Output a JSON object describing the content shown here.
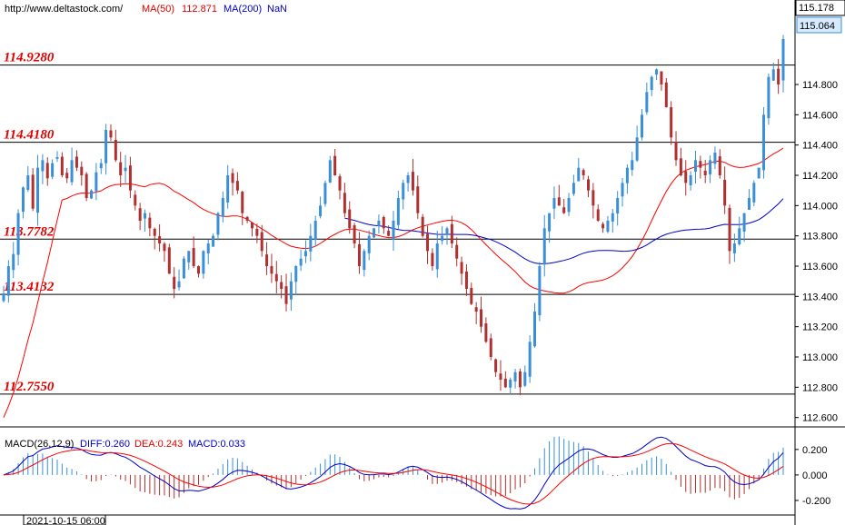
{
  "header": {
    "url": "http://www.deltastock.com/",
    "ma50_label": "MA(50)",
    "ma50_value": "112.871",
    "ma200_label": "MA(200)",
    "ma200_value": "NaN"
  },
  "price_axis": {
    "top_label": "115.178",
    "current_price": "115.064",
    "ticks": [
      "114.800",
      "114.600",
      "114.400",
      "114.200",
      "114.000",
      "113.800",
      "113.600",
      "113.400",
      "113.200",
      "113.000",
      "112.800",
      "112.600"
    ]
  },
  "macd": {
    "label": "MACD(26,12,9)",
    "diff": "DIFF:0.260",
    "dea": "DEA:0.243",
    "macd": "MACD:0.033",
    "ticks": [
      "0.200",
      "0.000",
      "-0.200"
    ]
  },
  "time_label": "2021-10-15 06:00",
  "colors": {
    "up": "#3a8fd6",
    "down": "#b03030",
    "ma50": "#ff0000",
    "ma200": "#0000cc",
    "levels": "#e00000"
  },
  "chart_data": {
    "type": "candlestick",
    "price_range": [
      112.55,
      115.25
    ],
    "levels": [
      {
        "label": "114.9280",
        "value": 114.928
      },
      {
        "label": "114.4180",
        "value": 114.418
      },
      {
        "label": "113.7782",
        "value": 113.7782
      },
      {
        "label": "113.4132",
        "value": 113.4132
      },
      {
        "label": "112.7550",
        "value": 112.755
      }
    ],
    "close": [
      113.42,
      113.6,
      113.68,
      113.95,
      114.12,
      114.2,
      113.98,
      114.25,
      114.3,
      114.18,
      114.28,
      114.32,
      114.2,
      114.18,
      114.3,
      114.25,
      114.2,
      114.05,
      114.1,
      114.22,
      114.28,
      114.5,
      114.45,
      114.3,
      114.2,
      114.25,
      114.1,
      114.0,
      113.9,
      113.95,
      113.85,
      113.8,
      113.75,
      113.7,
      113.55,
      113.45,
      113.5,
      113.65,
      113.7,
      113.6,
      113.55,
      113.7,
      113.75,
      113.8,
      113.95,
      114.05,
      114.2,
      114.15,
      114.1,
      113.95,
      113.9,
      113.85,
      113.8,
      113.7,
      113.6,
      113.55,
      113.5,
      113.45,
      113.35,
      113.5,
      113.6,
      113.65,
      113.7,
      113.8,
      113.9,
      114.0,
      114.15,
      114.3,
      114.2,
      114.1,
      113.95,
      113.85,
      113.75,
      113.6,
      113.7,
      113.8,
      113.85,
      113.9,
      113.85,
      113.8,
      113.9,
      114.05,
      114.15,
      114.2,
      114.1,
      113.95,
      113.8,
      113.7,
      113.6,
      113.75,
      113.8,
      113.85,
      113.75,
      113.65,
      113.55,
      113.45,
      113.35,
      113.3,
      113.2,
      113.1,
      113.0,
      112.9,
      112.85,
      112.8,
      112.85,
      112.9,
      112.8,
      112.9,
      113.1,
      113.3,
      113.6,
      113.85,
      113.95,
      114.05,
      114.0,
      113.95,
      114.05,
      114.15,
      114.25,
      114.2,
      114.1,
      114.0,
      113.9,
      113.85,
      113.9,
      113.95,
      114.05,
      114.15,
      114.25,
      114.3,
      114.45,
      114.6,
      114.75,
      114.85,
      114.9,
      114.8,
      114.65,
      114.45,
      114.3,
      114.2,
      114.15,
      114.2,
      114.3,
      114.25,
      114.2,
      114.3,
      114.35,
      114.2,
      114.0,
      113.7,
      113.75,
      113.85,
      113.95,
      114.05,
      114.15,
      114.25,
      114.6,
      114.85,
      114.9,
      114.8,
      115.1
    ]
  }
}
